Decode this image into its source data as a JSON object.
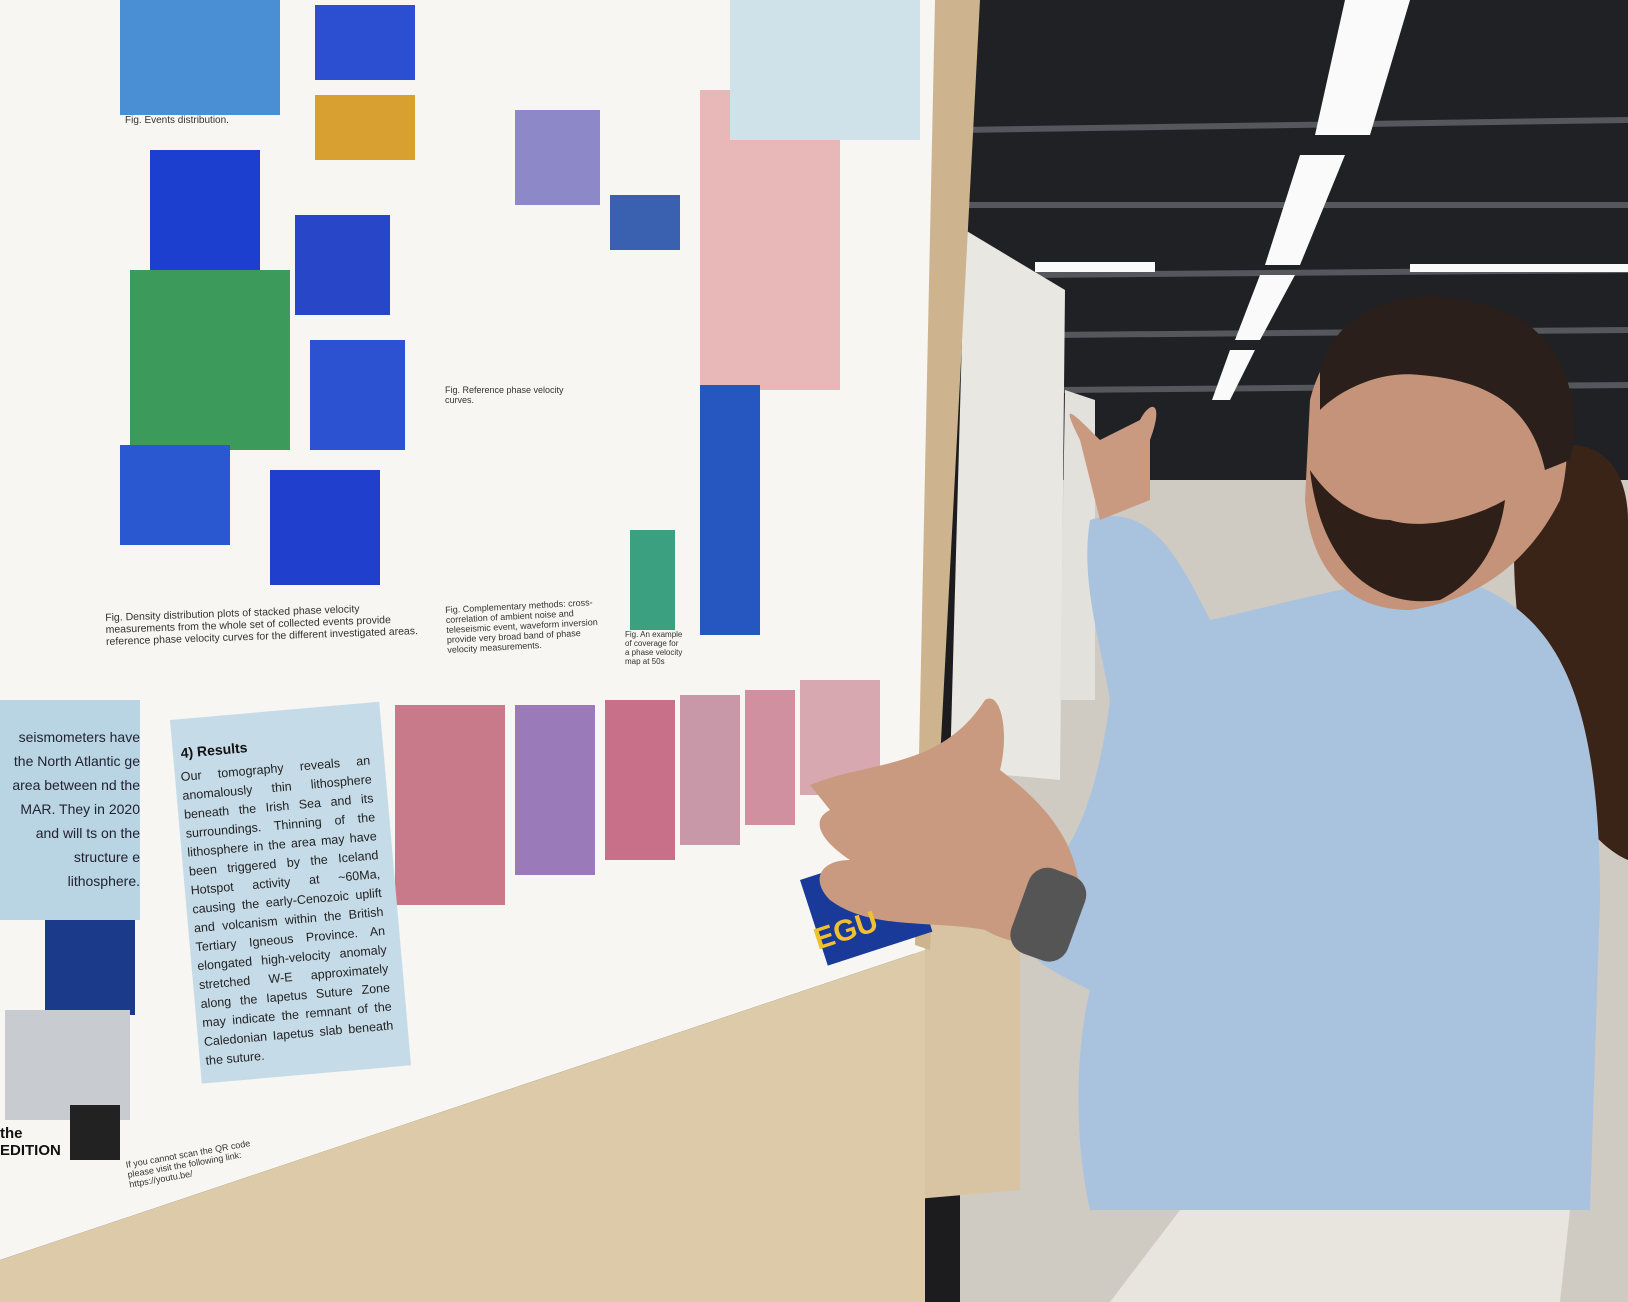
{
  "poster": {
    "results": {
      "heading": "4) Results",
      "body": "Our tomography reveals an anomalously thin lithosphere beneath the Irish Sea and its surroundings. Thinning of the lithosphere in the area may have been triggered by the Iceland Hotspot activity at ~60Ma, causing the early-Cenozoic uplift and volcanism within the British Tertiary Igneous Province. An elongated high-velocity anomaly stretched W-E approximately along the Iapetus Suture Zone may indicate the remnant of the Caledonian Iapetus slab beneath the suture."
    },
    "left_text": "seismometers have the North Atlantic ge area between nd the MAR. They in 2020 and will ts on the structure e lithosphere.",
    "edition": "the EDITION",
    "captions": [
      "Fig. Events distribution.",
      "Fig. Density distribution plots of stacked phase velocity measurements from the whole set of collected events provide reference phase velocity curves for the different investigated areas.",
      "Fig. Reference phase velocity curves.",
      "Fig. Complementary methods: cross-correlation of ambient noise and teleseismic event, waveform inversion provide very broad band of phase velocity measurements.",
      "Fig. An example of coverage for a phase velocity map at 50s"
    ],
    "qr_note": "If you cannot scan the QR code please visit the following link: https://youtu.be/",
    "logo": "EGU"
  }
}
